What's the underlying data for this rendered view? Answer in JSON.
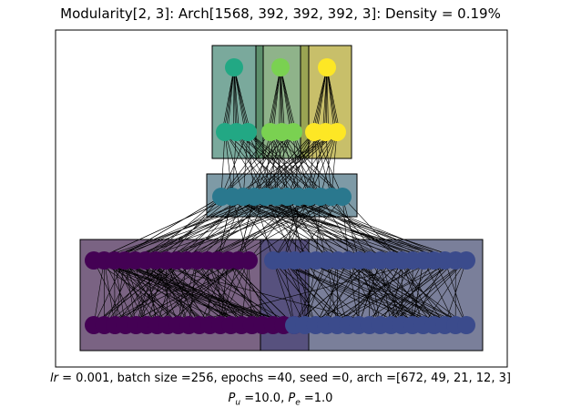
{
  "title": "Modularity[2, 3]: Arch[1568, 392, 392, 392, 3]: Density = 0.19%",
  "caption": {
    "lr_symbol": "lr",
    "line1_rest": "= 0.001, batch size =256, epochs =40, seed =0, arch =[672, 49, 21, 12, 3]",
    "pu_symbol": "P",
    "pu_sub": "u",
    "pu_value": "=10.0,",
    "pe_symbol": "P",
    "pe_sub": "e",
    "pe_value": "=1.0"
  },
  "diagram": {
    "layers": [
      {
        "name": "input-top",
        "modules": [
          {
            "color": "#440154",
            "nodes": 672
          },
          {
            "color": "#3b4b8c",
            "nodes": 896
          }
        ]
      },
      {
        "name": "input-bottom",
        "modules": [
          {
            "color": "#440154",
            "nodes": 672
          },
          {
            "color": "#3b4b8c",
            "nodes": 896
          }
        ]
      },
      {
        "name": "hidden-2",
        "modules": [
          {
            "color": "#2a788e",
            "nodes": 392
          }
        ]
      },
      {
        "name": "hidden-3",
        "modules": [
          {
            "color": "#22a884",
            "nodes": 392
          },
          {
            "color": "#7ad151",
            "nodes": 392
          },
          {
            "color": "#fde725",
            "nodes": 392
          }
        ]
      },
      {
        "name": "output",
        "modules": [
          {
            "color": "#22a884",
            "nodes": 1
          },
          {
            "color": "#7ad151",
            "nodes": 1
          },
          {
            "color": "#fde725",
            "nodes": 1
          }
        ]
      }
    ],
    "module_box_colors": {
      "purple": "#7a6383",
      "blue": "#7a7f9a",
      "teal": "#7e9aa6",
      "green": "#7aa99c",
      "lime": "#8fb38a",
      "yellow": "#c8bf6a",
      "overlap": "#52497a"
    }
  }
}
